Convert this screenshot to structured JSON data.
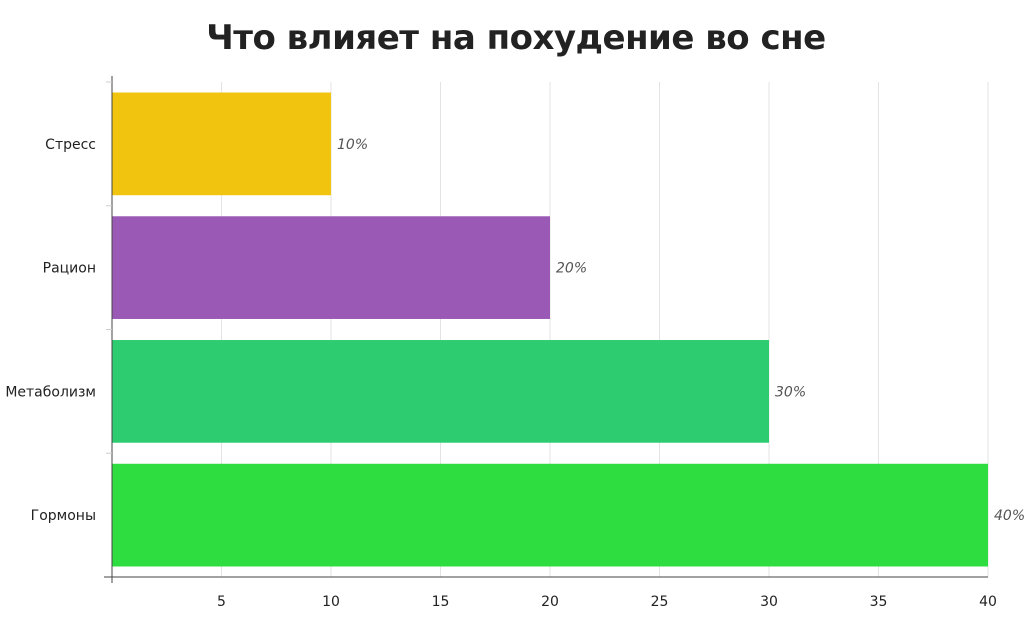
{
  "chart_data": {
    "type": "bar",
    "orientation": "horizontal",
    "title": "Что влияет на похудение во сне",
    "categories": [
      "Стресс",
      "Рацион",
      "Метаболизм",
      "Гормоны"
    ],
    "values": [
      10,
      20,
      30,
      40
    ],
    "data_labels": [
      "10%",
      "20%",
      "30%",
      "40%"
    ],
    "colors": [
      "#f1c40f",
      "#9b59b6",
      "#2ecc71",
      "#2edd3f"
    ],
    "xlim": [
      0,
      40
    ],
    "xticks": [
      5,
      10,
      15,
      20,
      25,
      30,
      35,
      40
    ],
    "grid": true,
    "xlabel": "",
    "ylabel": ""
  }
}
